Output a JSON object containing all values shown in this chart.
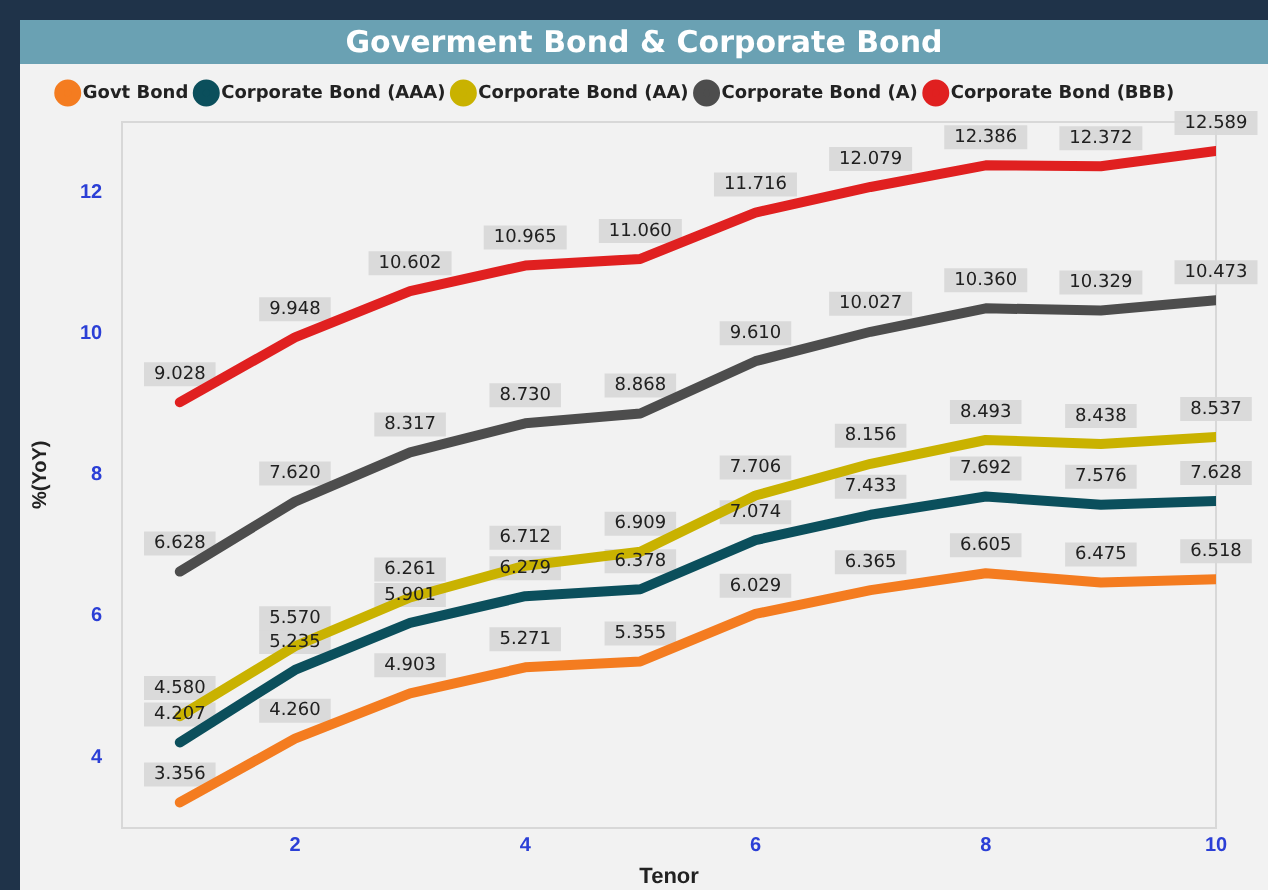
{
  "chart_data": {
    "type": "line",
    "title": "Goverment Bond & Corporate Bond",
    "xlabel": "Tenor",
    "ylabel": "%(YoY)",
    "x": [
      1,
      2,
      3,
      4,
      5,
      6,
      7,
      8,
      9,
      10
    ],
    "series": [
      {
        "name": "Govt Bond",
        "color": "#f47c20",
        "values": [
          3.356,
          4.26,
          4.903,
          5.271,
          5.355,
          6.029,
          6.365,
          6.605,
          6.475,
          6.518
        ],
        "value_labels": [
          "3.356",
          "4.260",
          "4.903",
          "5.271",
          "5.355",
          "6.029",
          "6.365",
          "6.605",
          "6.475",
          "6.518"
        ]
      },
      {
        "name": "Corporate Bond (AAA)",
        "color": "#0b4f5c",
        "values": [
          4.207,
          5.235,
          5.901,
          6.279,
          6.378,
          7.074,
          7.433,
          7.692,
          7.576,
          7.628
        ],
        "value_labels": [
          "4.207",
          "5.235",
          "5.901",
          "6.279",
          "6.378",
          "7.074",
          "7.433",
          "7.692",
          "7.576",
          "7.628"
        ]
      },
      {
        "name": "Corporate Bond (AA)",
        "color": "#c9b200",
        "values": [
          4.58,
          5.57,
          6.261,
          6.712,
          6.909,
          7.706,
          8.156,
          8.493,
          8.438,
          8.537
        ],
        "value_labels": [
          "4.580",
          "5.570",
          "6.261",
          "6.712",
          "6.909",
          "7.706",
          "8.156",
          "8.493",
          "8.438",
          "8.537"
        ]
      },
      {
        "name": "Corporate Bond (A)",
        "color": "#4d4d4d",
        "values": [
          6.628,
          7.62,
          8.317,
          8.73,
          8.868,
          9.61,
          10.027,
          10.36,
          10.329,
          10.473
        ],
        "value_labels": [
          "6.628",
          "7.620",
          "8.317",
          "8.730",
          "8.868",
          "9.610",
          "10.027",
          "10.360",
          "10.329",
          "10.473"
        ]
      },
      {
        "name": "Corporate Bond (BBB)",
        "color": "#e02020",
        "values": [
          9.028,
          9.948,
          10.602,
          10.965,
          11.06,
          11.716,
          12.079,
          12.386,
          12.372,
          12.589
        ],
        "value_labels": [
          "9.028",
          "9.948",
          "10.602",
          "10.965",
          "11.060",
          "11.716",
          "12.079",
          "12.386",
          "12.372",
          "12.589"
        ]
      }
    ],
    "xlim": [
      0.5,
      10
    ],
    "xticks": [
      2,
      4,
      6,
      8,
      10
    ],
    "ylim": [
      3,
      13
    ],
    "yticks": [
      4,
      6,
      8,
      10,
      12
    ],
    "grid": false,
    "legend": "top",
    "marker": "none",
    "line_style": "solid"
  }
}
